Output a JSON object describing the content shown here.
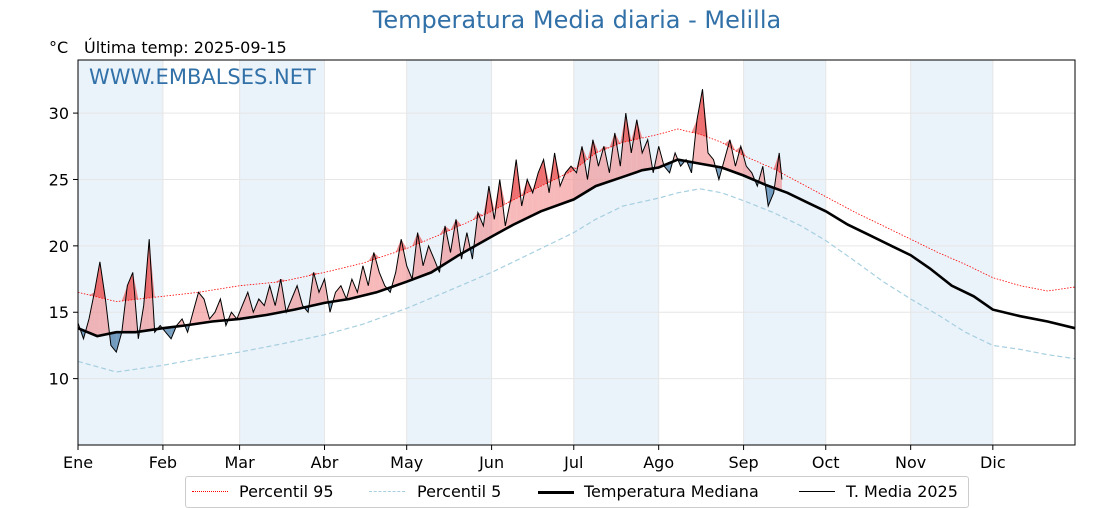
{
  "title": "Temperatura Media diaria - Melilla",
  "unit": "°C",
  "last_temp": "Última temp: 2025-09-15",
  "watermark": "WWW.EMBALSES.NET",
  "colors": {
    "title": "#3271a8",
    "p95": "#ff0000",
    "p5": "#a6cfe0",
    "median": "#000000",
    "current": "#000000",
    "above_fill": "#f08080",
    "below_fill": "#4a7fab",
    "band": "#eaf2fa"
  },
  "legend": [
    {
      "label": "Percentil 95",
      "style": "red-dotted"
    },
    {
      "label": "Percentil 5",
      "style": "lightblue-dashed"
    },
    {
      "label": "Temperatura Mediana",
      "style": "black-thick"
    },
    {
      "label": "T. Media 2025",
      "style": "black-thin"
    }
  ],
  "chart_data": {
    "type": "line",
    "x_axis": {
      "ticks": [
        "Ene",
        "Feb",
        "Mar",
        "Abr",
        "May",
        "Jun",
        "Jul",
        "Ago",
        "Sep",
        "Oct",
        "Nov",
        "Dic"
      ],
      "tick_days": [
        1,
        32,
        60,
        91,
        121,
        152,
        182,
        213,
        244,
        274,
        305,
        335
      ],
      "range_days": [
        1,
        365
      ]
    },
    "y_axis": {
      "ticks": [
        10,
        15,
        20,
        25,
        30
      ],
      "ylim": [
        5,
        34
      ]
    },
    "grid": true,
    "shaded_months": [
      "Ene",
      "Mar",
      "May",
      "Jul",
      "Sep",
      "Nov"
    ],
    "legend_position": "bottom",
    "series": [
      {
        "name": "Percentil 95",
        "x_day": [
          1,
          15,
          32,
          45,
          60,
          75,
          91,
          105,
          121,
          135,
          152,
          165,
          182,
          190,
          200,
          213,
          220,
          228,
          236,
          244,
          255,
          265,
          274,
          285,
          295,
          305,
          315,
          325,
          335,
          345,
          355,
          365
        ],
        "values": [
          16.5,
          15.8,
          16.2,
          16.5,
          17.0,
          17.3,
          18.0,
          18.7,
          19.8,
          21.0,
          22.6,
          24.0,
          25.7,
          27.0,
          27.8,
          28.4,
          28.8,
          28.4,
          27.8,
          26.8,
          25.8,
          24.7,
          23.7,
          22.5,
          21.5,
          20.5,
          19.5,
          18.6,
          17.6,
          17.0,
          16.6,
          16.9
        ]
      },
      {
        "name": "Percentil 5",
        "x_day": [
          1,
          15,
          32,
          45,
          60,
          75,
          91,
          105,
          121,
          135,
          152,
          165,
          182,
          190,
          200,
          213,
          220,
          228,
          236,
          244,
          255,
          265,
          274,
          285,
          295,
          305,
          315,
          325,
          335,
          345,
          355,
          365
        ],
        "values": [
          11.3,
          10.5,
          11.0,
          11.5,
          12.0,
          12.6,
          13.3,
          14.1,
          15.3,
          16.5,
          18.0,
          19.3,
          21.0,
          22.0,
          23.0,
          23.6,
          24.0,
          24.3,
          24.0,
          23.4,
          22.5,
          21.5,
          20.4,
          18.8,
          17.3,
          16.0,
          14.8,
          13.5,
          12.5,
          12.2,
          11.8,
          11.5
        ]
      },
      {
        "name": "Temperatura Mediana",
        "x_day": [
          1,
          8,
          15,
          22,
          32,
          40,
          50,
          60,
          70,
          80,
          91,
          100,
          110,
          121,
          130,
          140,
          152,
          160,
          170,
          182,
          190,
          200,
          207,
          213,
          220,
          228,
          236,
          244,
          252,
          260,
          268,
          274,
          282,
          290,
          298,
          305,
          312,
          320,
          328,
          335,
          345,
          355,
          365
        ],
        "values": [
          13.8,
          13.2,
          13.5,
          13.5,
          13.8,
          14.0,
          14.3,
          14.5,
          14.8,
          15.2,
          15.7,
          16.0,
          16.5,
          17.3,
          18.0,
          19.3,
          20.7,
          21.6,
          22.6,
          23.5,
          24.5,
          25.2,
          25.7,
          25.9,
          26.5,
          26.2,
          25.9,
          25.3,
          24.6,
          24.0,
          23.2,
          22.6,
          21.6,
          20.8,
          20.0,
          19.3,
          18.3,
          17.0,
          16.2,
          15.2,
          14.7,
          14.3,
          13.8
        ]
      },
      {
        "name": "T. Media 2025",
        "x_day": [
          1,
          3,
          5,
          7,
          9,
          11,
          13,
          15,
          17,
          19,
          21,
          23,
          25,
          27,
          29,
          31,
          33,
          35,
          37,
          39,
          41,
          43,
          45,
          47,
          49,
          51,
          53,
          55,
          57,
          59,
          61,
          63,
          65,
          67,
          69,
          71,
          73,
          75,
          77,
          79,
          81,
          83,
          85,
          87,
          89,
          91,
          93,
          95,
          97,
          99,
          101,
          103,
          105,
          107,
          109,
          111,
          113,
          115,
          117,
          119,
          121,
          123,
          125,
          127,
          129,
          131,
          133,
          135,
          137,
          139,
          141,
          143,
          145,
          147,
          149,
          151,
          153,
          155,
          157,
          159,
          161,
          163,
          165,
          167,
          169,
          171,
          173,
          175,
          177,
          179,
          181,
          183,
          185,
          187,
          189,
          191,
          193,
          195,
          197,
          199,
          201,
          203,
          205,
          207,
          209,
          211,
          213,
          215,
          217,
          219,
          221,
          223,
          225,
          227,
          229,
          231,
          233,
          235,
          237,
          239,
          241,
          243,
          245,
          247,
          249,
          251,
          253,
          255,
          257,
          258
        ],
        "values": [
          14.2,
          13.0,
          14.5,
          16.5,
          18.8,
          16.0,
          12.5,
          12.0,
          13.5,
          17.0,
          18.0,
          13.0,
          15.5,
          20.5,
          13.5,
          14.0,
          13.5,
          13.0,
          14.0,
          14.5,
          13.5,
          15.0,
          16.5,
          16.0,
          14.5,
          15.0,
          16.0,
          14.0,
          15.0,
          14.5,
          15.5,
          16.5,
          15.0,
          16.0,
          15.5,
          17.0,
          15.5,
          17.5,
          15.0,
          16.0,
          17.0,
          15.5,
          15.0,
          18.0,
          16.5,
          17.5,
          15.0,
          16.5,
          17.0,
          16.0,
          17.5,
          16.5,
          18.5,
          17.0,
          19.5,
          18.0,
          17.0,
          16.5,
          18.0,
          20.5,
          18.5,
          17.5,
          21.0,
          18.5,
          20.0,
          19.0,
          18.0,
          21.5,
          19.5,
          22.0,
          19.0,
          21.0,
          19.0,
          22.5,
          21.5,
          24.5,
          22.0,
          25.0,
          21.5,
          23.5,
          26.5,
          23.0,
          25.0,
          24.0,
          25.5,
          26.5,
          24.0,
          27.0,
          24.5,
          25.5,
          26.0,
          25.5,
          27.5,
          25.0,
          28.0,
          26.0,
          27.5,
          25.5,
          28.5,
          26.0,
          30.0,
          27.0,
          29.5,
          27.0,
          28.0,
          25.5,
          27.5,
          26.0,
          25.5,
          27.0,
          26.0,
          26.5,
          25.5,
          29.5,
          31.8,
          27.0,
          26.5,
          25.0,
          26.5,
          28.0,
          26.0,
          27.5,
          26.0,
          25.5,
          24.5,
          26.0,
          23.0,
          24.0,
          27.0,
          25.0
        ]
      }
    ]
  }
}
